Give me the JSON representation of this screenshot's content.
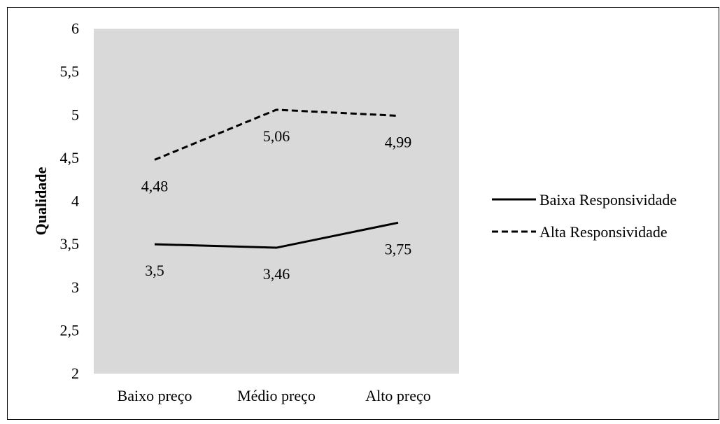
{
  "chart_data": {
    "type": "line",
    "title": "",
    "xlabel": "",
    "ylabel": "Qualidade",
    "categories": [
      "Baixo preço",
      "Médio preço",
      "Alto preço"
    ],
    "ylim": [
      2,
      6
    ],
    "yticks": [
      "2",
      "2,5",
      "3",
      "3,5",
      "4",
      "4,5",
      "5",
      "5,5",
      "6"
    ],
    "ytick_values": [
      2,
      2.5,
      3,
      3.5,
      4,
      4.5,
      5,
      5.5,
      6
    ],
    "grid": false,
    "plot_background": "#d9d9d9",
    "legend_position": "right",
    "series": [
      {
        "name": "Baixa Responsividade",
        "style": "solid",
        "color": "#000000",
        "values": [
          3.5,
          3.46,
          3.75
        ],
        "labels": [
          "3,5",
          "3,46",
          "3,75"
        ]
      },
      {
        "name": "Alta Responsividade",
        "style": "dashed",
        "color": "#000000",
        "values": [
          4.48,
          5.06,
          4.99
        ],
        "labels": [
          "4,48",
          "5,06",
          "4,99"
        ]
      }
    ]
  }
}
